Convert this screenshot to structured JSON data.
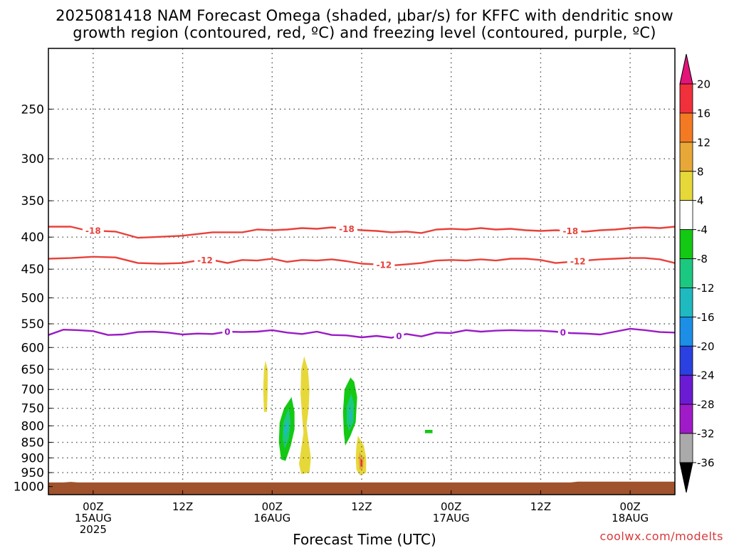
{
  "title_line1": "2025081418 NAM Forecast Omega (shaded, μbar/s) for KFFC with dendritic snow",
  "title_line2": "growth region (contoured, red, ºC) and freezing level (contoured, purple, ºC)",
  "xlabel": "Forecast Time (UTC)",
  "credit": "coolwx.com/modelts",
  "colors": {
    "dgz_contour": "#e8413a",
    "freezing_contour": "#9a1bc5",
    "ground": "#a0522d",
    "gridline": "#555555"
  },
  "chart_data": {
    "type": "heatmap",
    "y_axis": {
      "label": "",
      "scale": "log-pressure",
      "inverted": true,
      "range": [
        200,
        1030
      ],
      "ticks": [
        250,
        300,
        350,
        400,
        450,
        500,
        550,
        600,
        650,
        700,
        750,
        800,
        850,
        900,
        950,
        1000
      ]
    },
    "x_axis": {
      "range_hours": [
        0,
        84
      ],
      "init": "2025081418",
      "ticks": [
        {
          "hour": 6,
          "lines": [
            "00Z",
            "15AUG",
            "2025"
          ]
        },
        {
          "hour": 18,
          "lines": [
            "12Z"
          ]
        },
        {
          "hour": 30,
          "lines": [
            "00Z",
            "16AUG"
          ]
        },
        {
          "hour": 42,
          "lines": [
            "12Z"
          ]
        },
        {
          "hour": 54,
          "lines": [
            "00Z",
            "17AUG"
          ]
        },
        {
          "hour": 66,
          "lines": [
            "12Z"
          ]
        },
        {
          "hour": 78,
          "lines": [
            "00Z",
            "18AUG"
          ]
        }
      ]
    },
    "grid": true,
    "colorbar": {
      "unit": "μbar/s",
      "ticks": [
        20,
        16,
        12,
        8,
        4,
        -4,
        -8,
        -12,
        -16,
        -20,
        -24,
        -28,
        -32,
        -36
      ],
      "levels": [
        {
          "lo": 16,
          "hi": 20,
          "color": "#f0303a"
        },
        {
          "lo": 12,
          "hi": 16,
          "color": "#f37a23"
        },
        {
          "lo": 8,
          "hi": 12,
          "color": "#e8a838"
        },
        {
          "lo": 4,
          "hi": 8,
          "color": "#e7d83a"
        },
        {
          "lo": -4,
          "hi": 4,
          "color": "#ffffff"
        },
        {
          "lo": -8,
          "hi": -4,
          "color": "#13c913"
        },
        {
          "lo": -12,
          "hi": -8,
          "color": "#1bc880"
        },
        {
          "lo": -16,
          "hi": -12,
          "color": "#1fb9c0"
        },
        {
          "lo": -20,
          "hi": -16,
          "color": "#1c8ee6"
        },
        {
          "lo": -24,
          "hi": -20,
          "color": "#2a40e0"
        },
        {
          "lo": -28,
          "hi": -24,
          "color": "#6b1bd3"
        },
        {
          "lo": -32,
          "hi": -28,
          "color": "#a01bc8"
        },
        {
          "lo": -36,
          "hi": -32,
          "color": "#aaaaaa"
        }
      ],
      "over_color": "#e4137a",
      "under_color": "#000000"
    },
    "contours": [
      {
        "value": -18,
        "label": "-18",
        "color": "#e8413a",
        "x": [
          0,
          3,
          5,
          9,
          12,
          14,
          18,
          22,
          26,
          28,
          30,
          32,
          34,
          36,
          38,
          40,
          42,
          44,
          46,
          48,
          50,
          52,
          54,
          56,
          58,
          60,
          62,
          64,
          66,
          68,
          70,
          72,
          74,
          76,
          78,
          80,
          82,
          84
        ],
        "y": [
          385,
          385,
          390,
          392,
          401,
          400,
          398,
          393,
          393,
          389,
          390,
          389,
          387,
          388,
          386,
          388,
          390,
          391,
          393,
          392,
          394,
          389,
          388,
          389,
          387,
          389,
          388,
          390,
          391,
          390,
          391,
          392,
          390,
          389,
          387,
          386,
          387,
          385
        ],
        "label_hours": [
          6,
          40,
          70
        ]
      },
      {
        "value": -12,
        "label": "-12",
        "color": "#e8413a",
        "x": [
          0,
          3,
          6,
          9,
          12,
          15,
          18,
          20,
          22,
          24,
          26,
          28,
          30,
          32,
          34,
          36,
          38,
          40,
          42,
          44,
          46,
          48,
          50,
          52,
          54,
          56,
          58,
          60,
          62,
          64,
          66,
          68,
          70,
          72,
          74,
          76,
          78,
          80,
          82,
          84
        ],
        "y": [
          433,
          432,
          430,
          431,
          440,
          441,
          440,
          436,
          435,
          440,
          435,
          436,
          433,
          438,
          435,
          436,
          434,
          437,
          441,
          442,
          444,
          442,
          440,
          436,
          435,
          436,
          434,
          436,
          433,
          433,
          435,
          440,
          438,
          436,
          434,
          433,
          432,
          432,
          434,
          440
        ],
        "label_hours": [
          21,
          45,
          71
        ]
      },
      {
        "value": 0,
        "label": "0",
        "color": "#9a1bc5",
        "x": [
          0,
          2,
          4,
          6,
          8,
          10,
          12,
          14,
          16,
          18,
          20,
          22,
          24,
          26,
          28,
          30,
          32,
          34,
          36,
          38,
          40,
          42,
          44,
          46,
          48,
          50,
          52,
          54,
          56,
          58,
          60,
          62,
          64,
          66,
          68,
          70,
          72,
          74,
          76,
          78,
          80,
          82,
          84
        ],
        "y": [
          573,
          562,
          563,
          565,
          573,
          572,
          567,
          566,
          568,
          572,
          570,
          571,
          566,
          567,
          566,
          563,
          568,
          571,
          566,
          573,
          574,
          578,
          575,
          579,
          571,
          576,
          568,
          569,
          563,
          566,
          564,
          563,
          564,
          564,
          566,
          569,
          570,
          572,
          566,
          560,
          563,
          567,
          568
        ],
        "label_hours": [
          24,
          47,
          69
        ]
      }
    ],
    "shaded_regions": [
      {
        "value": 6,
        "color": "#e7d83a",
        "points": [
          [
            29.1,
            630
          ],
          [
            29.4,
            650
          ],
          [
            29.4,
            700
          ],
          [
            29.3,
            760
          ],
          [
            28.9,
            760
          ],
          [
            28.8,
            700
          ],
          [
            28.9,
            650
          ]
        ]
      },
      {
        "value": 6,
        "color": "#e7d83a",
        "points": [
          [
            34.3,
            620
          ],
          [
            34.8,
            650
          ],
          [
            35.0,
            700
          ],
          [
            34.9,
            750
          ],
          [
            34.6,
            800
          ],
          [
            34.9,
            850
          ],
          [
            35.2,
            900
          ],
          [
            35.0,
            950
          ],
          [
            33.9,
            955
          ],
          [
            33.6,
            920
          ],
          [
            33.9,
            870
          ],
          [
            34.2,
            820
          ],
          [
            34.0,
            770
          ],
          [
            33.8,
            710
          ],
          [
            33.9,
            650
          ]
        ]
      },
      {
        "value": 6,
        "color": "#e7d83a",
        "points": [
          [
            41.5,
            830
          ],
          [
            42.3,
            860
          ],
          [
            42.6,
            900
          ],
          [
            42.6,
            950
          ],
          [
            41.8,
            960
          ],
          [
            41.3,
            940
          ],
          [
            41.2,
            900
          ],
          [
            41.3,
            860
          ]
        ]
      },
      {
        "value": 14,
        "color": "#e8a838",
        "points": [
          [
            41.7,
            880
          ],
          [
            42.3,
            905
          ],
          [
            42.2,
            935
          ],
          [
            41.7,
            940
          ],
          [
            41.6,
            905
          ]
        ]
      },
      {
        "value": 18,
        "color": "#f0303a",
        "points": [
          [
            41.85,
            900
          ],
          [
            42.1,
            910
          ],
          [
            42.05,
            930
          ],
          [
            41.85,
            928
          ]
        ]
      },
      {
        "value": -6,
        "color": "#13c913",
        "points": [
          [
            32.6,
            720
          ],
          [
            33.0,
            760
          ],
          [
            33.0,
            810
          ],
          [
            32.5,
            860
          ],
          [
            31.8,
            910
          ],
          [
            31.2,
            905
          ],
          [
            30.9,
            850
          ],
          [
            31.0,
            790
          ],
          [
            31.6,
            750
          ]
        ]
      },
      {
        "value": -10,
        "color": "#1bc880",
        "points": [
          [
            32.2,
            750
          ],
          [
            32.5,
            790
          ],
          [
            32.2,
            840
          ],
          [
            31.7,
            870
          ],
          [
            31.4,
            840
          ],
          [
            31.5,
            790
          ]
        ]
      },
      {
        "value": -14,
        "color": "#1fb9c0",
        "points": [
          [
            32.0,
            780
          ],
          [
            32.1,
            810
          ],
          [
            31.8,
            835
          ],
          [
            31.6,
            810
          ]
        ]
      },
      {
        "value": -6,
        "color": "#13c913",
        "points": [
          [
            40.5,
            670
          ],
          [
            41.0,
            680
          ],
          [
            41.4,
            720
          ],
          [
            41.2,
            790
          ],
          [
            40.5,
            830
          ],
          [
            39.8,
            860
          ],
          [
            39.6,
            820
          ],
          [
            39.5,
            760
          ],
          [
            39.7,
            700
          ]
        ]
      },
      {
        "value": -10,
        "color": "#1bc880",
        "points": [
          [
            40.6,
            710
          ],
          [
            41.0,
            740
          ],
          [
            40.9,
            790
          ],
          [
            40.3,
            815
          ],
          [
            40.0,
            790
          ],
          [
            40.0,
            745
          ]
        ]
      },
      {
        "value": -14,
        "color": "#1fb9c0",
        "points": [
          [
            40.6,
            750
          ],
          [
            40.7,
            775
          ],
          [
            40.4,
            790
          ],
          [
            40.3,
            765
          ]
        ]
      },
      {
        "value": -6,
        "color": "#13c913",
        "points": [
          [
            50.5,
            812
          ],
          [
            51.5,
            812
          ],
          [
            51.5,
            822
          ],
          [
            50.5,
            822
          ]
        ]
      }
    ],
    "terrain_surface_hpa": [
      [
        0,
        985
      ],
      [
        2,
        985
      ],
      [
        3,
        983
      ],
      [
        4,
        985
      ],
      [
        70,
        985
      ],
      [
        71,
        982
      ],
      [
        84,
        982
      ]
    ]
  }
}
